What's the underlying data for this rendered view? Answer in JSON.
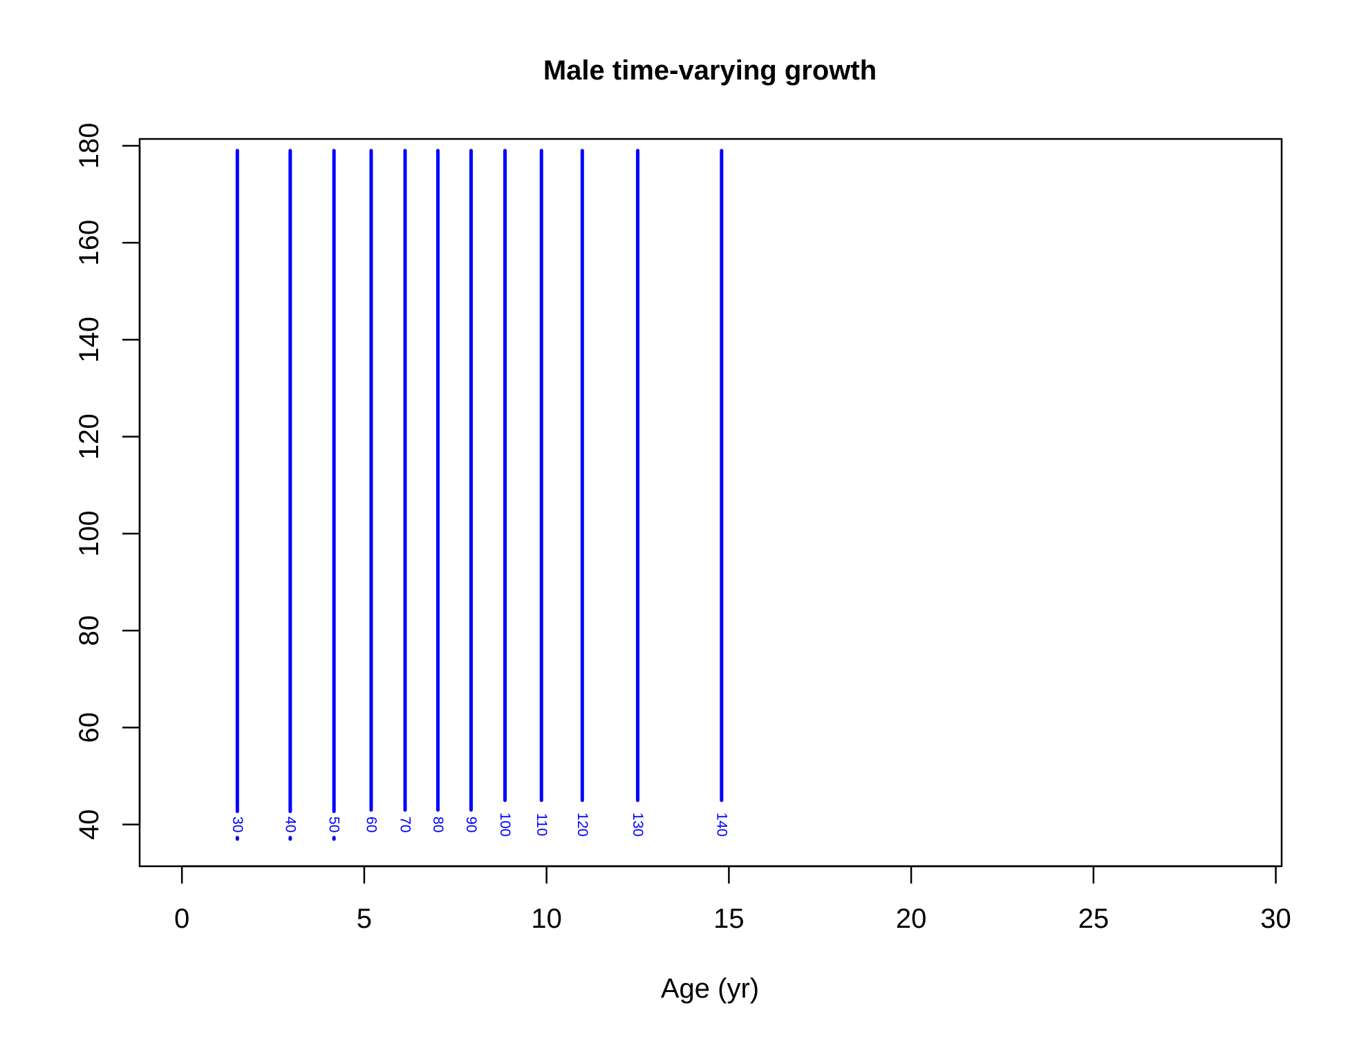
{
  "chart_data": {
    "type": "line",
    "title": "Male time-varying growth",
    "xlabel": "Age (yr)",
    "ylabel": "",
    "xlim": [
      -1.16,
      30.16
    ],
    "ylim": [
      31.4,
      181.4
    ],
    "xticks": [
      "0",
      "5",
      "10",
      "15",
      "20",
      "25",
      "30"
    ],
    "yticks": [
      "40",
      "60",
      "80",
      "100",
      "120",
      "140",
      "160",
      "180"
    ],
    "grid": false,
    "line_color": "#0000ff",
    "series": [
      {
        "label": "30",
        "x": 1.52,
        "y_range": [
          37,
          179
        ],
        "label_y": 40
      },
      {
        "label": "40",
        "x": 2.97,
        "y_range": [
          37,
          179
        ],
        "label_y": 40
      },
      {
        "label": "50",
        "x": 4.17,
        "y_range": [
          37,
          179
        ],
        "label_y": 40
      },
      {
        "label": "60",
        "x": 5.19,
        "y_range": [
          43,
          179
        ],
        "label_y": 40
      },
      {
        "label": "70",
        "x": 6.12,
        "y_range": [
          43,
          179
        ],
        "label_y": 40
      },
      {
        "label": "80",
        "x": 7.02,
        "y_range": [
          43,
          179
        ],
        "label_y": 40
      },
      {
        "label": "90",
        "x": 7.93,
        "y_range": [
          43,
          179
        ],
        "label_y": 40
      },
      {
        "label": "100",
        "x": 8.86,
        "y_range": [
          45,
          179
        ],
        "label_y": 40
      },
      {
        "label": "110",
        "x": 9.86,
        "y_range": [
          45,
          179
        ],
        "label_y": 40
      },
      {
        "label": "120",
        "x": 10.98,
        "y_range": [
          45,
          179
        ],
        "label_y": 40
      },
      {
        "label": "130",
        "x": 12.5,
        "y_range": [
          45,
          179
        ],
        "label_y": 40
      },
      {
        "label": "140",
        "x": 14.8,
        "y_range": [
          45,
          179
        ],
        "label_y": 40
      }
    ]
  }
}
